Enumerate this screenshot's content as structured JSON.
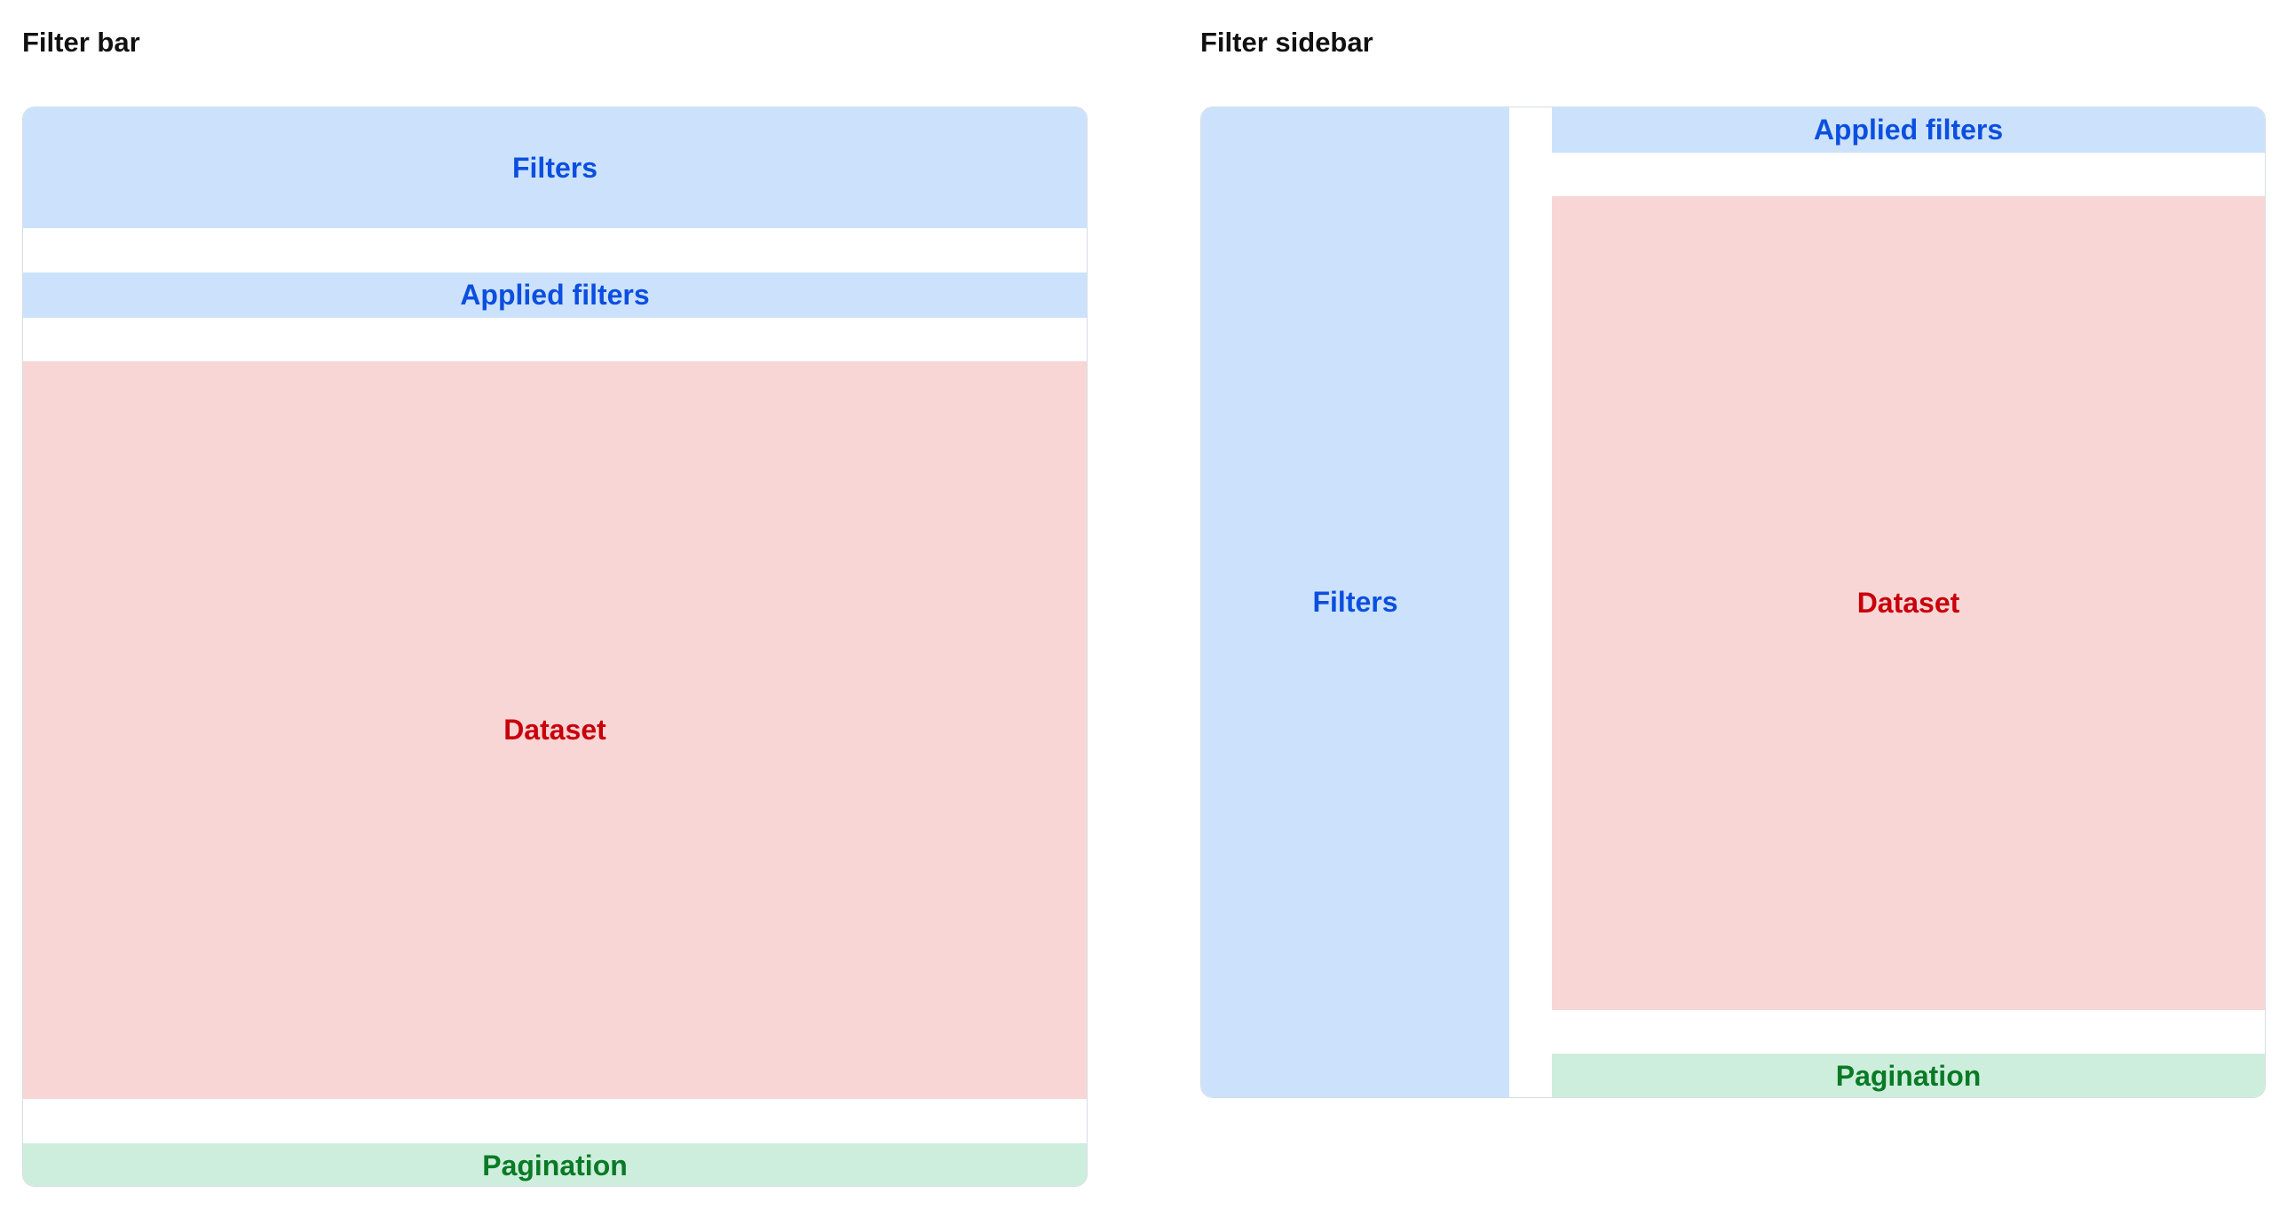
{
  "filter_bar": {
    "title": "Filter bar",
    "filters": "Filters",
    "applied_filters": "Applied filters",
    "dataset": "Dataset",
    "pagination": "Pagination"
  },
  "filter_sidebar": {
    "title": "Filter sidebar",
    "filters": "Filters",
    "applied_filters": "Applied filters",
    "dataset": "Dataset",
    "pagination": "Pagination"
  },
  "colors": {
    "filters_bg": "#cce2fc",
    "filters_text": "#0b4fe0",
    "dataset_bg": "#f9d6d6",
    "dataset_text": "#c8000b",
    "pagination_bg": "#cdeedc",
    "pagination_text": "#0a7a25"
  }
}
